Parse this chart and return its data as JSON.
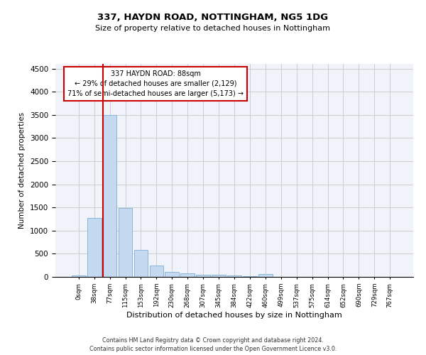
{
  "title": "337, HAYDN ROAD, NOTTINGHAM, NG5 1DG",
  "subtitle": "Size of property relative to detached houses in Nottingham",
  "xlabel": "Distribution of detached houses by size in Nottingham",
  "ylabel": "Number of detached properties",
  "bar_color": "#c5d9f0",
  "bar_edge_color": "#7bafd4",
  "background_color": "#f0f4fa",
  "grid_color": "#c8c8c8",
  "annotation_box_color": "#cc0000",
  "vline_color": "#cc0000",
  "annotation_text": "337 HAYDN ROAD: 88sqm\n← 29% of detached houses are smaller (2,129)\n71% of semi-detached houses are larger (5,173) →",
  "footer_text": "Contains HM Land Registry data © Crown copyright and database right 2024.\nContains public sector information licensed under the Open Government Licence v3.0.",
  "bin_labels": [
    "0sqm",
    "38sqm",
    "77sqm",
    "115sqm",
    "153sqm",
    "192sqm",
    "230sqm",
    "268sqm",
    "307sqm",
    "345sqm",
    "384sqm",
    "422sqm",
    "460sqm",
    "499sqm",
    "537sqm",
    "575sqm",
    "614sqm",
    "652sqm",
    "690sqm",
    "729sqm",
    "767sqm"
  ],
  "bar_heights": [
    30,
    1270,
    3500,
    1480,
    580,
    240,
    115,
    80,
    50,
    40,
    30,
    20,
    55,
    5,
    5,
    3,
    3,
    3,
    3,
    3,
    3
  ],
  "ylim": [
    0,
    4600
  ],
  "yticks": [
    0,
    500,
    1000,
    1500,
    2000,
    2500,
    3000,
    3500,
    4000,
    4500
  ],
  "vline_index": 2
}
